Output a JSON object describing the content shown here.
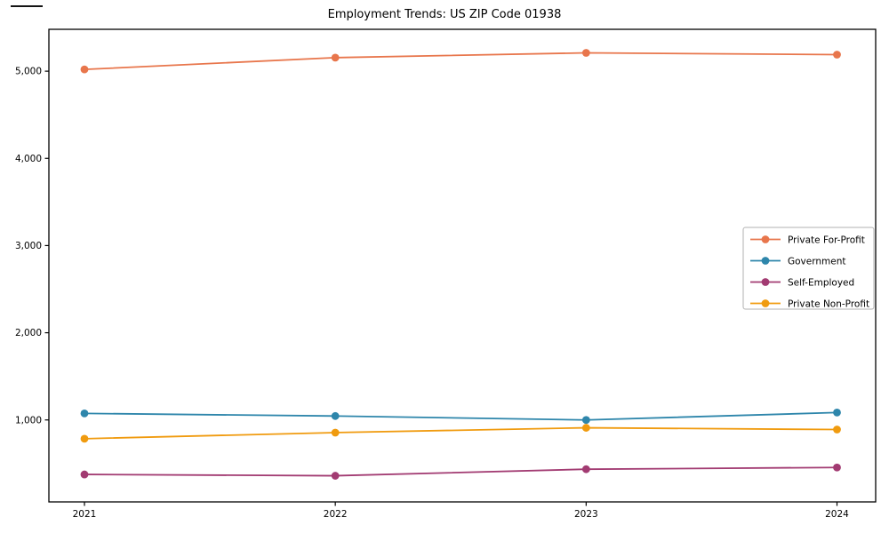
{
  "figure": {
    "title": "Employment Trends: US ZIP Code 01938"
  },
  "chart_data": {
    "type": "line",
    "title": "Employment Trends: US ZIP Code 01938",
    "xlabel": "",
    "ylabel": "",
    "grid": false,
    "x": [
      2021,
      2022,
      2023,
      2024
    ],
    "x_tick_labels": [
      "2021",
      "2022",
      "2023",
      "2024"
    ],
    "y_ticks": [
      1000,
      2000,
      3000,
      4000,
      5000
    ],
    "y_tick_labels": [
      "1,000",
      "2,000",
      "3,000",
      "4,000",
      "5,000"
    ],
    "ylim": [
      60,
      5480
    ],
    "series": [
      {
        "name": "Private For-Profit",
        "color": "#E8764C",
        "values": [
          5020,
          5155,
          5210,
          5190
        ]
      },
      {
        "name": "Government",
        "color": "#2E86AB",
        "values": [
          1075,
          1045,
          1000,
          1085
        ]
      },
      {
        "name": "Self-Employed",
        "color": "#A23B72",
        "values": [
          375,
          360,
          435,
          455
        ]
      },
      {
        "name": "Private Non-Profit",
        "color": "#F09B0F",
        "values": [
          785,
          855,
          910,
          890
        ]
      }
    ],
    "legend": {
      "position": "center-right",
      "entries": [
        "Private For-Profit",
        "Government",
        "Self-Employed",
        "Private Non-Profit"
      ]
    },
    "style": {
      "frame_color": "#000000",
      "legend_border_color": "#b0b0b0",
      "text_color": "#000000"
    }
  }
}
